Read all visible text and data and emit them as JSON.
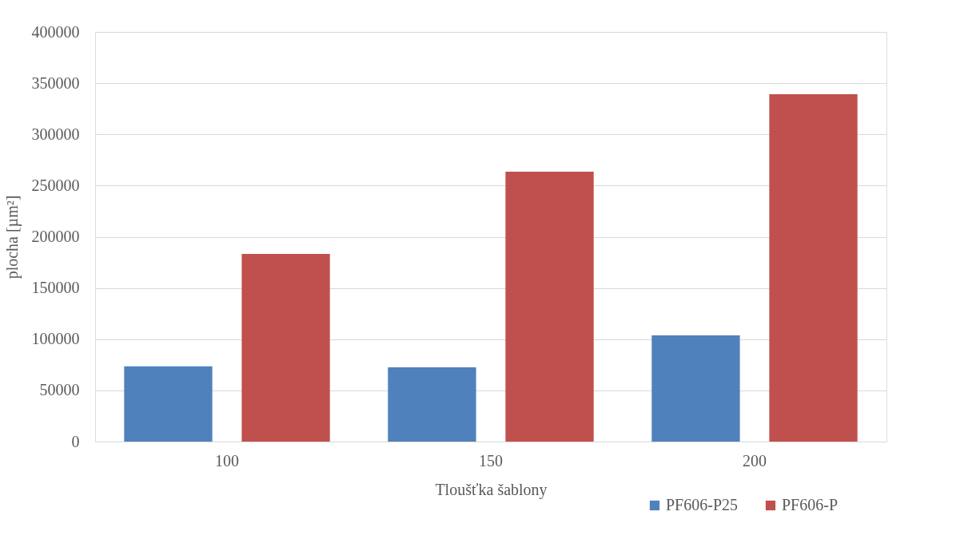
{
  "chart_data": {
    "type": "bar",
    "xlabel": "Tloušťka šablony",
    "ylabel": "plocha [µm²]",
    "categories": [
      "100",
      "150",
      "200"
    ],
    "series": [
      {
        "name": "PF606-P25",
        "color": "#4f81bd",
        "values": [
          73500,
          72500,
          103700
        ]
      },
      {
        "name": "PF606-P",
        "color": "#c0504d",
        "values": [
          183200,
          263500,
          339200
        ]
      }
    ],
    "ylim": [
      0,
      400000
    ],
    "yticks": [
      0,
      50000,
      100000,
      150000,
      200000,
      250000,
      300000,
      350000,
      400000
    ],
    "grid": "y",
    "legend": "bottom right"
  }
}
